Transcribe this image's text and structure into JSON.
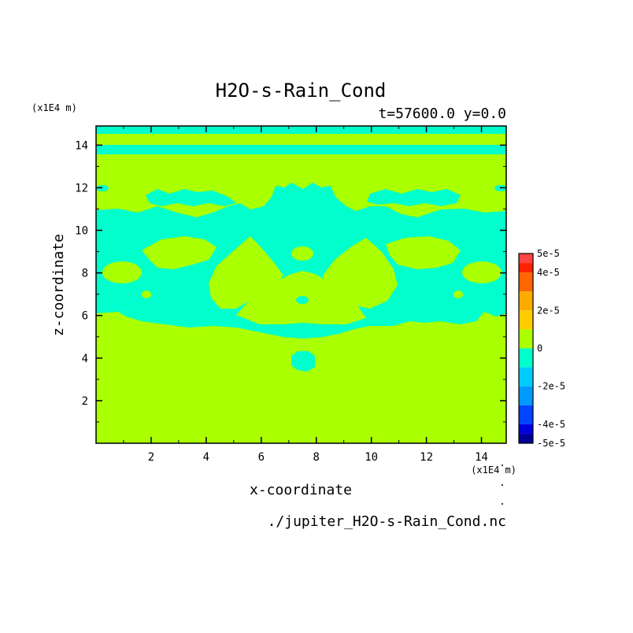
{
  "chart_data": {
    "type": "heatmap",
    "title": "H2O-s-Rain_Cond",
    "subtitle": "t=57600.0 y=0.0",
    "xlabel": "x-coordinate",
    "ylabel": "z-coordinate",
    "x_unit": "(x1E4 m)",
    "y_unit": "(x1E4 m)",
    "source_file": "./jupiter_H2O-s-Rain_Cond.nc",
    "xlim": [
      0,
      14.9
    ],
    "ylim": [
      0,
      14.9
    ],
    "x_ticks": [
      2,
      4,
      6,
      8,
      10,
      12,
      14
    ],
    "y_ticks": [
      2,
      4,
      6,
      8,
      10,
      12,
      14
    ],
    "colorbar": {
      "labels": [
        "5e-5",
        "4e-5",
        "2e-5",
        "0",
        "-2e-5",
        "-4e-5",
        "-5e-5"
      ],
      "label_values": [
        5,
        4,
        2,
        0,
        -2,
        -4,
        -5
      ],
      "levels": [
        5,
        4.5,
        4,
        3,
        2,
        1,
        0,
        -1,
        -2,
        -3,
        -4,
        -4.5,
        -5
      ],
      "colors": [
        "#ff4444",
        "#ff2200",
        "#ff6600",
        "#ffaa00",
        "#ffcc00",
        "#aaff00",
        "#00ffcc",
        "#00ccff",
        "#0099ff",
        "#0044ff",
        "#0000dd",
        "#000099"
      ]
    },
    "background_value_color": "#aaff00",
    "regions": [
      {
        "value_color": "#00ffcc",
        "description_band": "top",
        "z_range": [
          14.5,
          14.9
        ]
      },
      {
        "value_color": "#00ffcc",
        "description_band": "upper",
        "z_range": [
          13.6,
          14.0
        ]
      },
      {
        "value_color": "#00ffcc",
        "description_band": "middle",
        "z_range": [
          5.3,
          11.3
        ]
      },
      {
        "value_color": "#00ffcc",
        "description_band": "blob",
        "z_range": [
          3.4,
          4.4
        ]
      }
    ]
  }
}
